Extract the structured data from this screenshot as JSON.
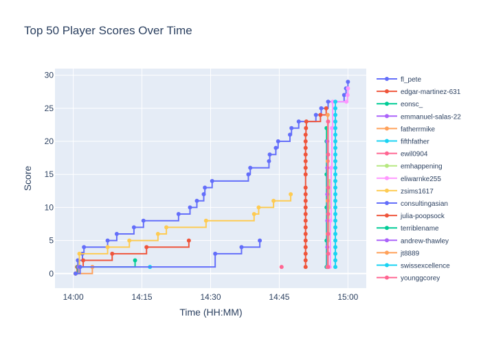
{
  "chart_data": {
    "type": "line",
    "line_shape": "step",
    "title": "Top 50 Player Scores Over Time",
    "xlabel": "Time (HH:MM)",
    "ylabel": "Score",
    "xlim": [
      "13:56",
      "15:04"
    ],
    "ylim": [
      -2.2,
      31
    ],
    "x_ticks": [
      "14:00",
      "14:15",
      "14:30",
      "14:45",
      "15:00"
    ],
    "y_ticks": [
      0,
      5,
      10,
      15,
      20,
      25,
      30
    ],
    "grid": true,
    "legend_position": "right",
    "colors": {
      "plot_bg": "#e5ecf6",
      "grid": "#ffffff",
      "text": "#2a3f5f"
    },
    "series": [
      {
        "name": "fl_pete",
        "color": "#636efa",
        "points": [
          [
            "14:00:30",
            0
          ],
          [
            "14:01:00",
            2
          ],
          [
            "14:02:00",
            3
          ],
          [
            "14:02:20",
            4
          ],
          [
            "14:07:30",
            5
          ],
          [
            "14:09:30",
            6
          ],
          [
            "14:13:15",
            7
          ],
          [
            "14:15:20",
            8
          ],
          [
            "14:23:00",
            9
          ],
          [
            "14:25:30",
            10
          ],
          [
            "14:27:00",
            11
          ],
          [
            "14:28:30",
            12
          ],
          [
            "14:28:45",
            13
          ],
          [
            "14:30:20",
            14
          ],
          [
            "14:38:15",
            15
          ],
          [
            "14:38:40",
            16
          ],
          [
            "14:42:45",
            17
          ],
          [
            "14:42:55",
            18
          ],
          [
            "14:44:15",
            19
          ],
          [
            "14:44:45",
            20
          ],
          [
            "14:47:20",
            21
          ],
          [
            "14:47:40",
            22
          ],
          [
            "14:49:15",
            23
          ],
          [
            "14:53:00",
            24
          ],
          [
            "14:54:10",
            25
          ],
          [
            "14:55:40",
            26
          ],
          [
            "14:59:10",
            27
          ],
          [
            "14:59:35",
            28
          ],
          [
            "15:00:00",
            29
          ]
        ]
      },
      {
        "name": "edgar-martinez-631",
        "color": "#ef553b",
        "points": [
          [
            "14:00:30",
            0
          ],
          [
            "14:00:50",
            1
          ],
          [
            "14:02:10",
            2
          ],
          [
            "14:08:30",
            3
          ],
          [
            "14:16:00",
            4
          ],
          [
            "14:25:15",
            5
          ]
        ]
      },
      {
        "name": "eonsc_",
        "color": "#00cc96",
        "points": [
          [
            "14:00:30",
            0
          ],
          [
            "14:01:00",
            1
          ],
          [
            "14:13:30",
            2
          ]
        ]
      },
      {
        "name": "emmanuel-salas-22",
        "color": "#ab63fa",
        "points": [
          [
            "14:00:30",
            0
          ],
          [
            "14:01:10",
            1
          ]
        ]
      },
      {
        "name": "fatherrmike",
        "color": "#ffa15a",
        "points": [
          [
            "14:00:30",
            0
          ],
          [
            "14:04:10",
            1
          ]
        ]
      },
      {
        "name": "fifthfather",
        "color": "#19d3f3",
        "points": [
          [
            "14:16:45",
            1
          ]
        ]
      },
      {
        "name": "ewil0904",
        "color": "#ff6692",
        "points": [
          [
            "14:45:30",
            1
          ]
        ]
      },
      {
        "name": "emhappening",
        "color": "#b6e880",
        "points": [
          [
            "14:55:30",
            1
          ],
          [
            "14:55:40",
            5
          ],
          [
            "14:55:50",
            10
          ],
          [
            "14:56:00",
            14
          ]
        ]
      },
      {
        "name": "eliwarnke255",
        "color": "#ff97ff",
        "points": [
          [
            "14:56:00",
            1
          ],
          [
            "14:56:10",
            8
          ],
          [
            "14:56:20",
            16
          ],
          [
            "14:56:30",
            22
          ],
          [
            "14:56:40",
            26
          ],
          [
            "14:59:40",
            26
          ],
          [
            "14:59:55",
            27
          ],
          [
            "15:00:00",
            28
          ]
        ]
      },
      {
        "name": "zsims1617",
        "color": "#fecb52",
        "points": [
          [
            "14:00:30",
            0
          ],
          [
            "14:01:20",
            3
          ],
          [
            "14:07:30",
            4
          ],
          [
            "14:12:15",
            5
          ],
          [
            "14:18:30",
            6
          ],
          [
            "14:20:20",
            7
          ],
          [
            "14:29:00",
            8
          ],
          [
            "14:39:30",
            9
          ],
          [
            "14:40:30",
            10
          ],
          [
            "14:43:45",
            11
          ],
          [
            "14:47:30",
            12
          ]
        ]
      },
      {
        "name": "consultingasian",
        "color": "#636efa",
        "points": [
          [
            "14:00:30",
            0
          ],
          [
            "14:01:30",
            1
          ],
          [
            "14:31:00",
            3
          ],
          [
            "14:36:45",
            4
          ],
          [
            "14:40:45",
            5
          ]
        ]
      },
      {
        "name": "julia-poopsock",
        "color": "#ef553b",
        "points": [
          [
            "14:50:45",
            1
          ],
          [
            "14:50:45",
            2
          ],
          [
            "14:50:45",
            3
          ],
          [
            "14:50:45",
            4
          ],
          [
            "14:50:45",
            5
          ],
          [
            "14:50:45",
            6
          ],
          [
            "14:50:45",
            7
          ],
          [
            "14:50:45",
            8
          ],
          [
            "14:50:45",
            9
          ],
          [
            "14:50:45",
            10
          ],
          [
            "14:50:45",
            11
          ],
          [
            "14:50:45",
            12
          ],
          [
            "14:50:45",
            13
          ],
          [
            "14:50:45",
            15
          ],
          [
            "14:50:45",
            16
          ],
          [
            "14:50:45",
            17
          ],
          [
            "14:50:45",
            18
          ],
          [
            "14:50:45",
            19
          ],
          [
            "14:50:45",
            20
          ],
          [
            "14:50:45",
            21
          ],
          [
            "14:50:50",
            22
          ],
          [
            "14:50:55",
            23
          ],
          [
            "14:54:00",
            24
          ],
          [
            "14:55:15",
            25
          ]
        ]
      },
      {
        "name": "terriblename",
        "color": "#00cc96",
        "points": [
          [
            "14:55:20",
            1
          ],
          [
            "14:55:20",
            5
          ],
          [
            "14:55:20",
            10
          ],
          [
            "14:55:20",
            15
          ],
          [
            "14:55:20",
            20
          ],
          [
            "14:55:20",
            22
          ]
        ]
      },
      {
        "name": "andrew-thawley",
        "color": "#ab63fa",
        "points": [
          [
            "14:55:30",
            1
          ],
          [
            "14:55:30",
            4
          ],
          [
            "14:55:30",
            8
          ],
          [
            "14:55:30",
            12
          ],
          [
            "14:55:30",
            16
          ],
          [
            "14:55:30",
            20
          ]
        ]
      },
      {
        "name": "jt8889",
        "color": "#ffa15a",
        "points": [
          [
            "14:55:35",
            1
          ],
          [
            "14:55:35",
            6
          ],
          [
            "14:55:35",
            11
          ],
          [
            "14:55:35",
            17
          ],
          [
            "14:55:35",
            24
          ]
        ]
      },
      {
        "name": "swissexcellence",
        "color": "#19d3f3",
        "points": [
          [
            "14:57:15",
            1
          ],
          [
            "14:57:15",
            2
          ],
          [
            "14:57:15",
            3
          ],
          [
            "14:57:15",
            4
          ],
          [
            "14:57:15",
            5
          ],
          [
            "14:57:15",
            6
          ],
          [
            "14:57:15",
            7
          ],
          [
            "14:57:15",
            8
          ],
          [
            "14:57:15",
            9
          ],
          [
            "14:57:15",
            10
          ],
          [
            "14:57:15",
            11
          ],
          [
            "14:57:15",
            12
          ],
          [
            "14:57:15",
            13
          ],
          [
            "14:57:15",
            14
          ],
          [
            "14:57:15",
            15
          ],
          [
            "14:57:15",
            16
          ],
          [
            "14:57:15",
            17
          ],
          [
            "14:57:15",
            18
          ],
          [
            "14:57:15",
            19
          ],
          [
            "14:57:15",
            20
          ],
          [
            "14:57:15",
            21
          ],
          [
            "14:57:15",
            22
          ],
          [
            "14:57:15",
            23
          ],
          [
            "14:57:15",
            24
          ],
          [
            "14:57:15",
            25
          ],
          [
            "14:57:15",
            26
          ]
        ]
      },
      {
        "name": "younggcorey",
        "color": "#ff6692",
        "points": [
          [
            "14:55:40",
            1
          ],
          [
            "14:55:40",
            3
          ],
          [
            "14:55:40",
            6
          ],
          [
            "14:55:40",
            9
          ],
          [
            "14:55:40",
            13
          ],
          [
            "14:55:40",
            18
          ],
          [
            "14:55:40",
            23
          ]
        ]
      }
    ]
  }
}
